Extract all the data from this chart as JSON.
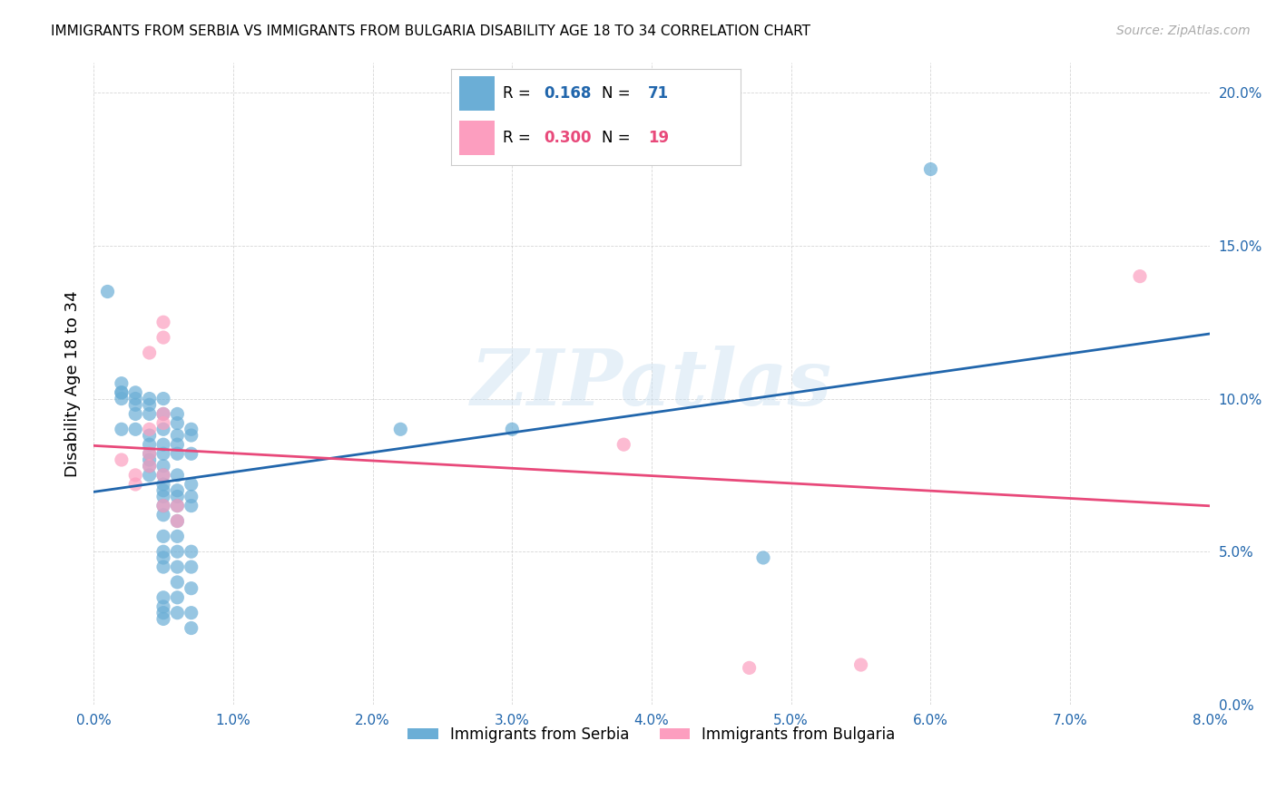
{
  "title": "IMMIGRANTS FROM SERBIA VS IMMIGRANTS FROM BULGARIA DISABILITY AGE 18 TO 34 CORRELATION CHART",
  "source": "Source: ZipAtlas.com",
  "xlabel": "",
  "ylabel": "Disability Age 18 to 34",
  "watermark": "ZIPatlas",
  "xmin": 0.0,
  "xmax": 0.08,
  "ymin": 0.0,
  "ymax": 0.21,
  "xticks": [
    0.0,
    0.01,
    0.02,
    0.03,
    0.04,
    0.05,
    0.06,
    0.07,
    0.08
  ],
  "yticks": [
    0.0,
    0.05,
    0.1,
    0.15,
    0.2
  ],
  "serbia_color": "#6baed6",
  "bulgaria_color": "#fc9ebf",
  "serbia_R": 0.168,
  "serbia_N": 71,
  "bulgaria_R": 0.3,
  "bulgaria_N": 19,
  "serbia_line_color": "#2166ac",
  "bulgaria_line_color": "#e8497a",
  "serbia_scatter": [
    [
      0.001,
      0.135
    ],
    [
      0.002,
      0.105
    ],
    [
      0.002,
      0.102
    ],
    [
      0.002,
      0.102
    ],
    [
      0.002,
      0.1
    ],
    [
      0.002,
      0.09
    ],
    [
      0.003,
      0.102
    ],
    [
      0.003,
      0.1
    ],
    [
      0.003,
      0.098
    ],
    [
      0.003,
      0.095
    ],
    [
      0.003,
      0.09
    ],
    [
      0.004,
      0.1
    ],
    [
      0.004,
      0.098
    ],
    [
      0.004,
      0.095
    ],
    [
      0.004,
      0.088
    ],
    [
      0.004,
      0.085
    ],
    [
      0.004,
      0.082
    ],
    [
      0.004,
      0.08
    ],
    [
      0.004,
      0.078
    ],
    [
      0.004,
      0.075
    ],
    [
      0.005,
      0.1
    ],
    [
      0.005,
      0.095
    ],
    [
      0.005,
      0.09
    ],
    [
      0.005,
      0.085
    ],
    [
      0.005,
      0.082
    ],
    [
      0.005,
      0.078
    ],
    [
      0.005,
      0.075
    ],
    [
      0.005,
      0.072
    ],
    [
      0.005,
      0.07
    ],
    [
      0.005,
      0.068
    ],
    [
      0.005,
      0.065
    ],
    [
      0.005,
      0.062
    ],
    [
      0.005,
      0.055
    ],
    [
      0.005,
      0.05
    ],
    [
      0.005,
      0.048
    ],
    [
      0.005,
      0.045
    ],
    [
      0.005,
      0.035
    ],
    [
      0.005,
      0.032
    ],
    [
      0.005,
      0.03
    ],
    [
      0.005,
      0.028
    ],
    [
      0.006,
      0.095
    ],
    [
      0.006,
      0.092
    ],
    [
      0.006,
      0.088
    ],
    [
      0.006,
      0.085
    ],
    [
      0.006,
      0.082
    ],
    [
      0.006,
      0.075
    ],
    [
      0.006,
      0.07
    ],
    [
      0.006,
      0.068
    ],
    [
      0.006,
      0.065
    ],
    [
      0.006,
      0.06
    ],
    [
      0.006,
      0.055
    ],
    [
      0.006,
      0.05
    ],
    [
      0.006,
      0.045
    ],
    [
      0.006,
      0.04
    ],
    [
      0.006,
      0.035
    ],
    [
      0.006,
      0.03
    ],
    [
      0.007,
      0.09
    ],
    [
      0.007,
      0.088
    ],
    [
      0.007,
      0.082
    ],
    [
      0.007,
      0.072
    ],
    [
      0.007,
      0.068
    ],
    [
      0.007,
      0.065
    ],
    [
      0.007,
      0.05
    ],
    [
      0.007,
      0.045
    ],
    [
      0.007,
      0.038
    ],
    [
      0.007,
      0.03
    ],
    [
      0.007,
      0.025
    ],
    [
      0.022,
      0.09
    ],
    [
      0.03,
      0.09
    ],
    [
      0.048,
      0.048
    ],
    [
      0.06,
      0.175
    ]
  ],
  "bulgaria_scatter": [
    [
      0.002,
      0.08
    ],
    [
      0.003,
      0.075
    ],
    [
      0.003,
      0.072
    ],
    [
      0.004,
      0.115
    ],
    [
      0.004,
      0.09
    ],
    [
      0.004,
      0.082
    ],
    [
      0.004,
      0.078
    ],
    [
      0.005,
      0.125
    ],
    [
      0.005,
      0.12
    ],
    [
      0.005,
      0.095
    ],
    [
      0.005,
      0.092
    ],
    [
      0.005,
      0.075
    ],
    [
      0.005,
      0.065
    ],
    [
      0.006,
      0.065
    ],
    [
      0.006,
      0.06
    ],
    [
      0.038,
      0.085
    ],
    [
      0.047,
      0.012
    ],
    [
      0.055,
      0.013
    ],
    [
      0.075,
      0.14
    ]
  ],
  "background_color": "#ffffff"
}
